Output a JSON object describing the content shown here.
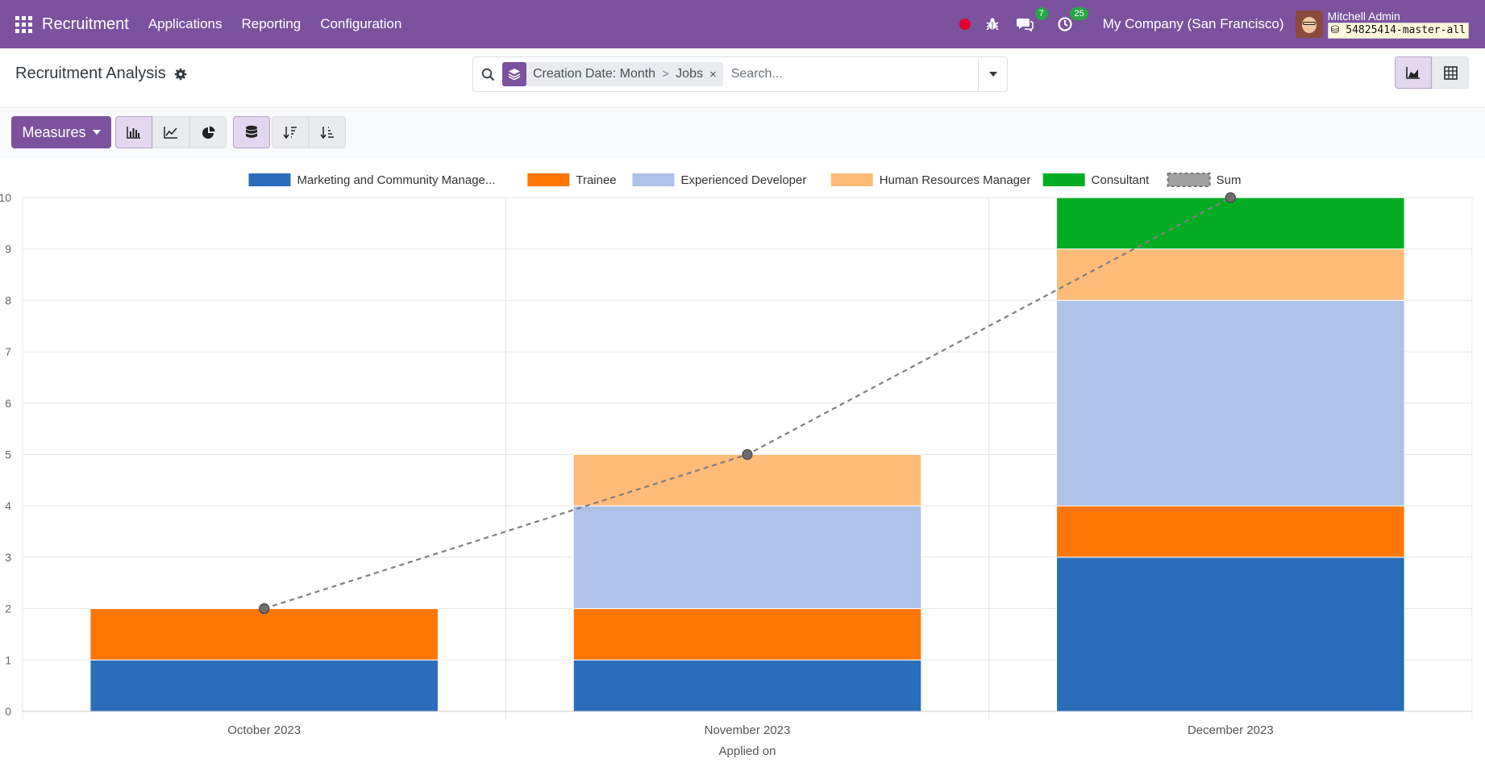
{
  "navbar": {
    "brand": "Recruitment",
    "menus": [
      "Applications",
      "Reporting",
      "Configuration"
    ],
    "messages_count": "7",
    "activities_count": "25",
    "company": "My Company (San Francisco)",
    "user_name": "Mitchell Admin",
    "database": "54825414-master-all"
  },
  "control": {
    "title": "Recruitment Analysis",
    "facet_group_1": "Creation Date: Month",
    "facet_separator": ">",
    "facet_group_2": "Jobs",
    "facet_remove": "×",
    "search_placeholder": "Search..."
  },
  "toolbar": {
    "measures_label": "Measures"
  },
  "colors": {
    "brand": "#7c529f",
    "grid": "#e6e6e6"
  },
  "chart_data": {
    "type": "bar",
    "stacked": true,
    "categories": [
      "October 2023",
      "November 2023",
      "December 2023"
    ],
    "xlabel": "Applied on",
    "ylabel": "",
    "ylim": [
      0,
      10
    ],
    "yticks": [
      0,
      1,
      2,
      3,
      4,
      5,
      6,
      7,
      8,
      9,
      10
    ],
    "legend_position": "top",
    "series": [
      {
        "name": "Marketing and Community Manage...",
        "color": "#2a6ebb",
        "values": [
          1,
          1,
          3
        ]
      },
      {
        "name": "Trainee",
        "color": "#ff7606",
        "values": [
          1,
          1,
          1
        ]
      },
      {
        "name": "Experienced Developer",
        "color": "#adc2e8",
        "values": [
          0,
          2,
          4
        ]
      },
      {
        "name": "Human Resources Manager",
        "color": "#ffbb78",
        "values": [
          0,
          1,
          1
        ]
      },
      {
        "name": "Consultant",
        "color": "#04ac21",
        "values": [
          0,
          0,
          1
        ]
      }
    ],
    "sum_line": {
      "name": "Sum",
      "color": "#808080",
      "values": [
        2,
        5,
        10
      ]
    }
  }
}
